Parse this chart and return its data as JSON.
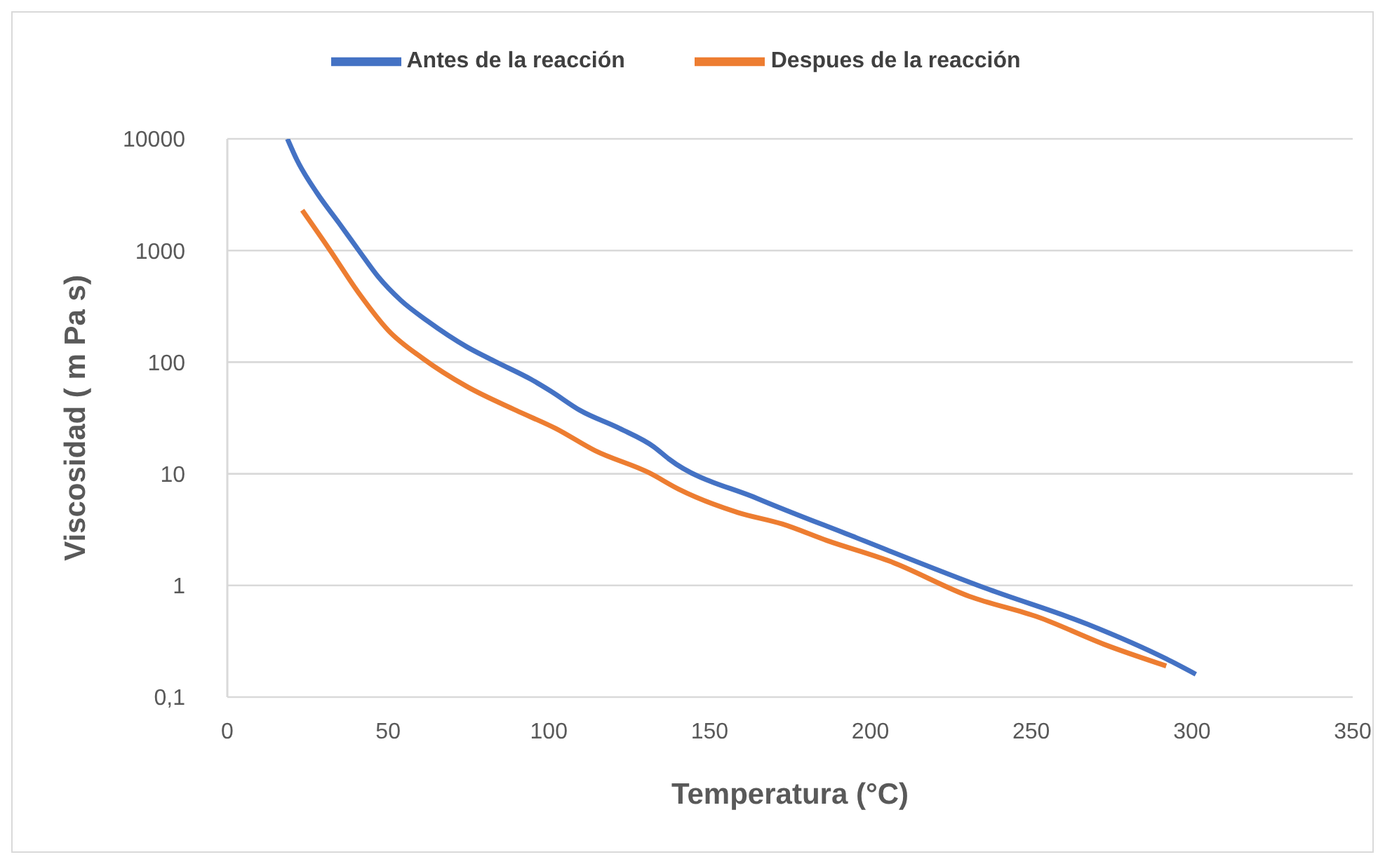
{
  "chart_data": {
    "type": "line",
    "xlabel": "Temperatura (°C)",
    "ylabel": "Viscosidad ( m Pa s)",
    "series": [
      {
        "name": "Antes de la reacción",
        "color": "#4472c4",
        "x": [
          18.7,
          21.7,
          27.9,
          34.8,
          40.9,
          47,
          53.9,
          62.3,
          74.5,
          83.7,
          94.5,
          100.6,
          109.7,
          122,
          132.7,
          137.3,
          164.9,
          194,
          236.9,
          267.5,
          292,
          301.2
        ],
        "values": [
          10000,
          6430,
          3270,
          1750,
          1000,
          578,
          359,
          233,
          137,
          100,
          70,
          55,
          37,
          25.5,
          17.4,
          13.6,
          6.0,
          2.79,
          0.92,
          0.45,
          0.22,
          0.16
        ]
      },
      {
        "name": "Despues de la reacción",
        "color": "#ed7d31",
        "x": [
          23.3,
          31.7,
          40.9,
          50.1,
          60.8,
          74.5,
          89.8,
          102.1,
          114.4,
          131.2,
          140.3,
          158.8,
          172.6,
          186.4,
          206.2,
          230.7,
          252.2,
          273.6,
          292
        ],
        "values": [
          2296,
          1030,
          415,
          192,
          108,
          60.5,
          37,
          25.5,
          16.1,
          10.2,
          7.3,
          4.5,
          3.55,
          2.53,
          1.64,
          0.8,
          0.52,
          0.29,
          0.19
        ]
      }
    ],
    "xlim": [
      0,
      350
    ],
    "xticks": [
      0,
      50,
      100,
      150,
      200,
      250,
      300,
      350
    ],
    "ylim": [
      0.1,
      10000
    ],
    "yticks": [
      {
        "value": 0.1,
        "label": "0,1"
      },
      1,
      10,
      100,
      1000,
      10000
    ],
    "log": "y",
    "grid": "y",
    "legend": "top",
    "marker": "none",
    "line_style": "solid"
  }
}
